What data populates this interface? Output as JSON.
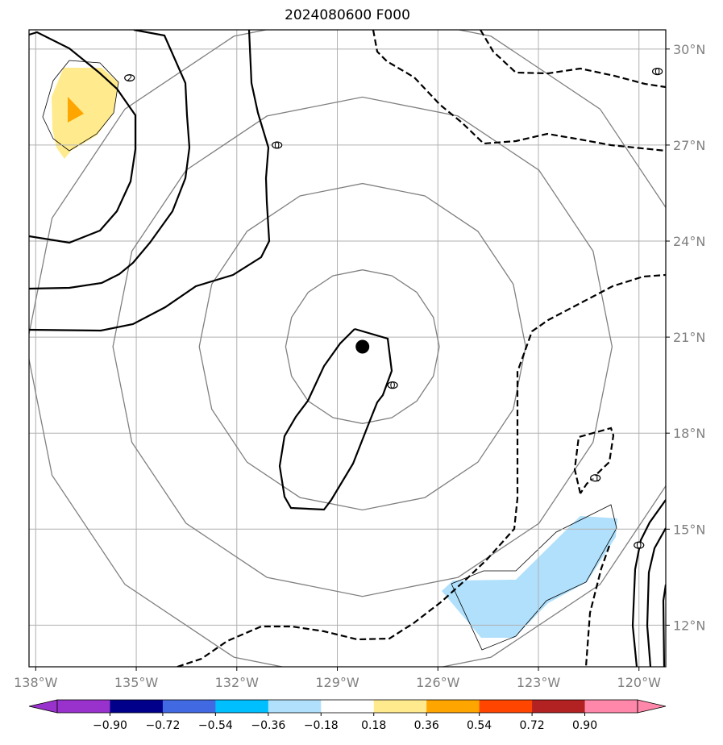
{
  "title": "2024080600 F000",
  "chart_data": {
    "type": "map",
    "title": "2024080600 F000",
    "projection": "lat-lon",
    "lon_range": [
      -138.2,
      -119.2
    ],
    "lat_range": [
      10.7,
      30.6
    ],
    "lon_ticks": [
      -138,
      -135,
      -132,
      -129,
      -126,
      -123,
      -120
    ],
    "lon_tick_labels": [
      "138°W",
      "135°W",
      "132°W",
      "129°W",
      "126°W",
      "123°W",
      "120°W"
    ],
    "lat_ticks": [
      12,
      15,
      18,
      21,
      24,
      27,
      30
    ],
    "lat_tick_labels": [
      "12°N",
      "15°N",
      "18°N",
      "21°N",
      "24°N",
      "27°N",
      "30°N"
    ],
    "grid": true,
    "storm_center": {
      "lon": -128.25,
      "lat": 20.7
    },
    "range_rings_color": "#808080",
    "range_rings_radius_deg_lat": [
      2.4,
      5.1,
      7.8,
      10.5
    ],
    "contour_labels": [
      {
        "text": "2",
        "lon": -135.2,
        "lat": 29.1
      },
      {
        "text": "0",
        "lon": -130.8,
        "lat": 27.0
      },
      {
        "text": "0",
        "lon": -127.35,
        "lat": 19.5
      },
      {
        "text": "0",
        "lon": -119.45,
        "lat": 29.3
      },
      {
        "text": "-1",
        "lon": -121.3,
        "lat": 16.6
      },
      {
        "text": "0",
        "lon": -120.0,
        "lat": 14.5
      }
    ],
    "shaded_areas": [
      {
        "category": "0.18 to 0.36",
        "color": "#FFEB8D"
      },
      {
        "category": "0.36 to 0.54",
        "color": "#FFA500"
      },
      {
        "category": "-0.36 to -0.18",
        "color": "#B0E0FB"
      }
    ],
    "colorbar": {
      "colors": [
        "#9932CC",
        "#9932CC",
        "#00008B",
        "#4169E1",
        "#00BFFF",
        "#B0E0FB",
        "#FFFFFF",
        "#FFEB8D",
        "#FFA500",
        "#FF4500",
        "#B22222",
        "#FF88AA",
        "#FF88AA"
      ],
      "tick_values": [
        -0.9,
        -0.72,
        -0.54,
        -0.36,
        -0.18,
        0.18,
        0.36,
        0.54,
        0.72,
        0.9
      ],
      "tick_labels": [
        "−0.90",
        "−0.72",
        "−0.54",
        "−0.36",
        "−0.18",
        "0.18",
        "0.36",
        "0.54",
        "0.72",
        "0.90"
      ],
      "extend": "both"
    }
  }
}
